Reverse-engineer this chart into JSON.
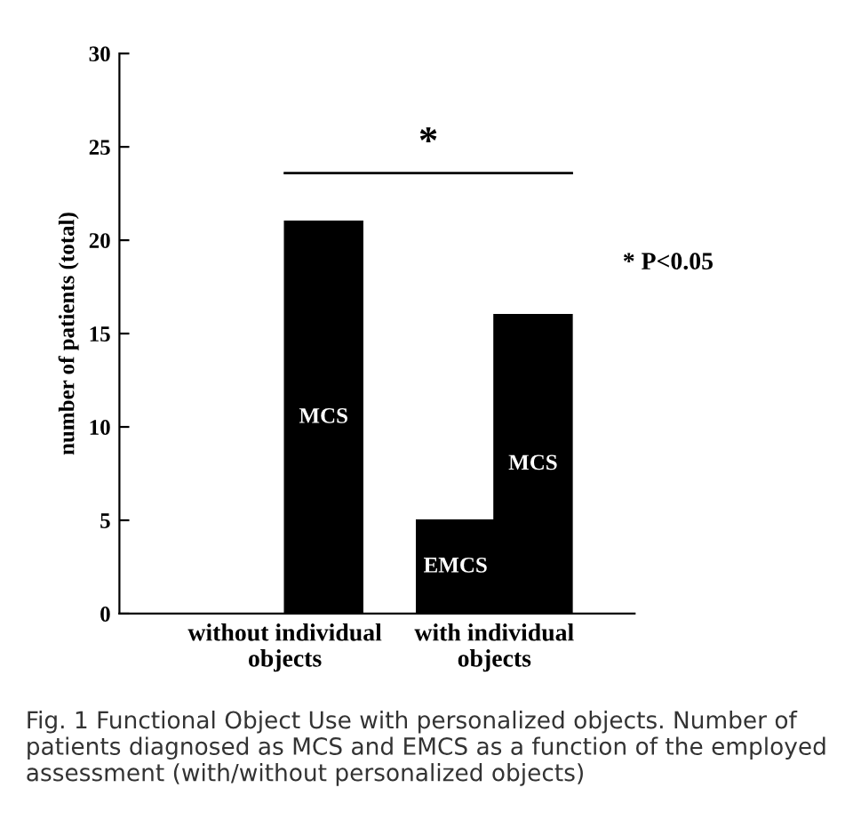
{
  "chart_data": {
    "type": "bar",
    "ylabel": "number of patients (total)",
    "categories": [
      "without individual\nobjects",
      "with individual\nobjects"
    ],
    "series": [
      {
        "name": "EMCS",
        "color": "#000000",
        "values": [
          null,
          5
        ]
      },
      {
        "name": "MCS",
        "color": "#000000",
        "values": [
          21,
          16
        ]
      }
    ],
    "ylim": [
      0,
      30
    ],
    "yticks": [
      0,
      5,
      10,
      15,
      20,
      25,
      30
    ],
    "grid": false,
    "legend": false,
    "annotations": [
      "*",
      "* P<0.05",
      "Fig. 1 Functional Object Use with personalized objects. Number of patients diagnosed as MCS and EMCS as a function of the employed assessment (with/without personalized objects)"
    ]
  }
}
